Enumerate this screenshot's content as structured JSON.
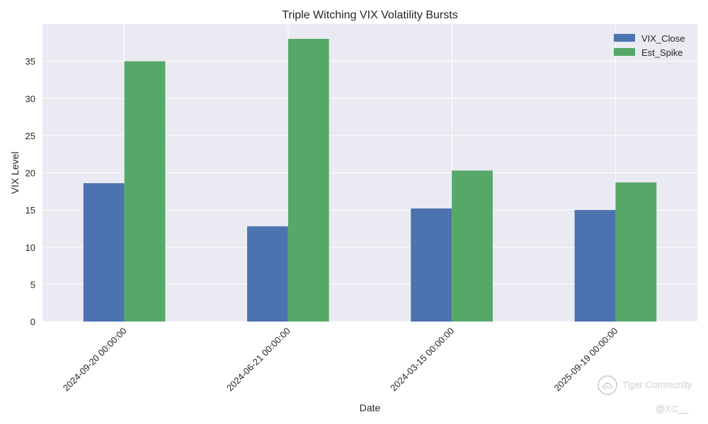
{
  "chart_data": {
    "type": "bar",
    "title": "Triple Witching VIX Volatility Bursts",
    "xlabel": "Date",
    "ylabel": "VIX Level",
    "categories": [
      "2024-09-20 00:00:00",
      "2024-06-21 00:00:00",
      "2024-03-15 00:00:00",
      "2025-09-19 00:00:00"
    ],
    "series": [
      {
        "name": "VIX_Close",
        "color": "#4c72b0",
        "values": [
          18.6,
          12.8,
          15.2,
          15.0
        ]
      },
      {
        "name": "Est_Spike",
        "color": "#55a868",
        "values": [
          35.0,
          38.0,
          20.3,
          18.7
        ]
      }
    ],
    "ylim": [
      0,
      40
    ],
    "yticks": [
      0,
      5,
      10,
      15,
      20,
      25,
      30,
      35
    ],
    "grid": true,
    "legend_position": "top-right",
    "plot_background": "#eaeaf2"
  },
  "watermark": {
    "brand": "Tiger Community",
    "handle": "@XC__",
    "icon": "tiger-logo-icon"
  }
}
